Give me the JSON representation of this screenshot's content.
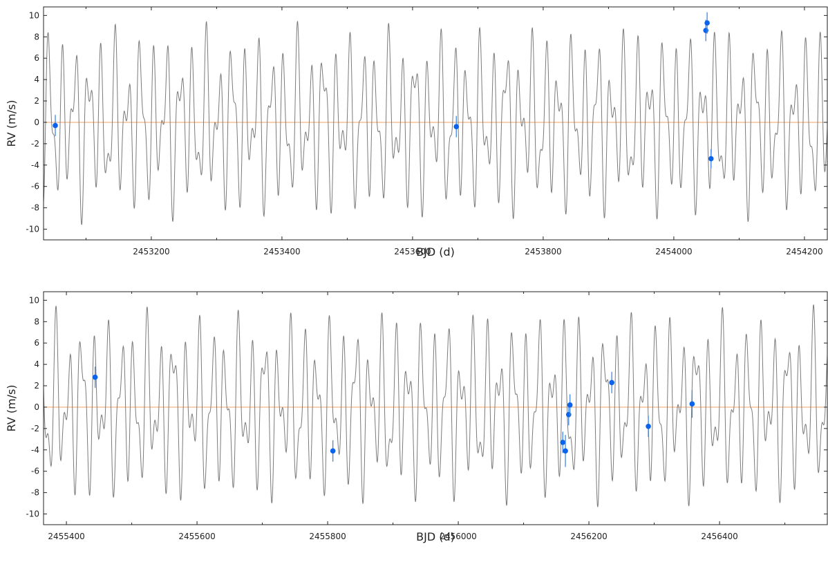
{
  "chart_data": [
    {
      "type": "scatter",
      "title": "",
      "xlabel": "BJD (d)",
      "ylabel": "RV (m/s)",
      "xlim": [
        2453035,
        2454235
      ],
      "ylim": [
        -11,
        10.8
      ],
      "xticks": [
        2453200,
        2453400,
        2453600,
        2453800,
        2454000,
        2454200
      ],
      "xtick_labels": [
        "2453200",
        "2453400",
        "2453600",
        "2453800",
        "2454000",
        "2454200"
      ],
      "yticks": [
        -10,
        -8,
        -6,
        -4,
        -2,
        0,
        2,
        4,
        6,
        8,
        10
      ],
      "ytick_labels": [
        "-10",
        "-8",
        "-6",
        "-4",
        "-2",
        "0",
        "2",
        "4",
        "6",
        "8",
        "10"
      ],
      "grid": false,
      "colors": {
        "model": "#7a7a7a",
        "zero_line": "#f0a060",
        "points": "#0a63e8",
        "errorbars": "#3f86e6"
      },
      "points": [
        {
          "x": 2453053,
          "y": -0.3,
          "err": 1.0
        },
        {
          "x": 2453667,
          "y": -0.4,
          "err": 1.0
        },
        {
          "x": 2454049,
          "y": 8.6,
          "err": 1.0
        },
        {
          "x": 2454051,
          "y": 9.3,
          "err": 1.0
        },
        {
          "x": 2454057,
          "y": -3.4,
          "err": 0.9
        }
      ]
    },
    {
      "type": "scatter",
      "title": "",
      "xlabel": "BJD (d)",
      "ylabel": "RV (m/s)",
      "xlim": [
        2455365,
        2456565
      ],
      "ylim": [
        -11,
        10.8
      ],
      "xticks": [
        2455400,
        2455600,
        2455800,
        2456000,
        2456200,
        2456400
      ],
      "xtick_labels": [
        "2455400",
        "2455600",
        "2455800",
        "2456000",
        "2456200",
        "2456400"
      ],
      "yticks": [
        -10,
        -8,
        -6,
        -4,
        -2,
        0,
        2,
        4,
        6,
        8,
        10
      ],
      "ytick_labels": [
        "-10",
        "-8",
        "-6",
        "-4",
        "-2",
        "0",
        "2",
        "4",
        "6",
        "8",
        "10"
      ],
      "grid": false,
      "colors": {
        "model": "#7a7a7a",
        "zero_line": "#f0a060",
        "points": "#0a63e8",
        "errorbars": "#3f86e6"
      },
      "points": [
        {
          "x": 2455444,
          "y": 2.8,
          "err": 1.0
        },
        {
          "x": 2455808,
          "y": -4.1,
          "err": 1.0
        },
        {
          "x": 2456160,
          "y": -3.3,
          "err": 1.0
        },
        {
          "x": 2456164,
          "y": -4.1,
          "err": 1.5
        },
        {
          "x": 2456169,
          "y": -0.7,
          "err": 1.0
        },
        {
          "x": 2456171,
          "y": 0.2,
          "err": 1.0
        },
        {
          "x": 2456235,
          "y": 2.3,
          "err": 1.0
        },
        {
          "x": 2456291,
          "y": -1.8,
          "err": 1.0
        },
        {
          "x": 2456358,
          "y": 0.3,
          "err": 1.3
        }
      ]
    }
  ]
}
